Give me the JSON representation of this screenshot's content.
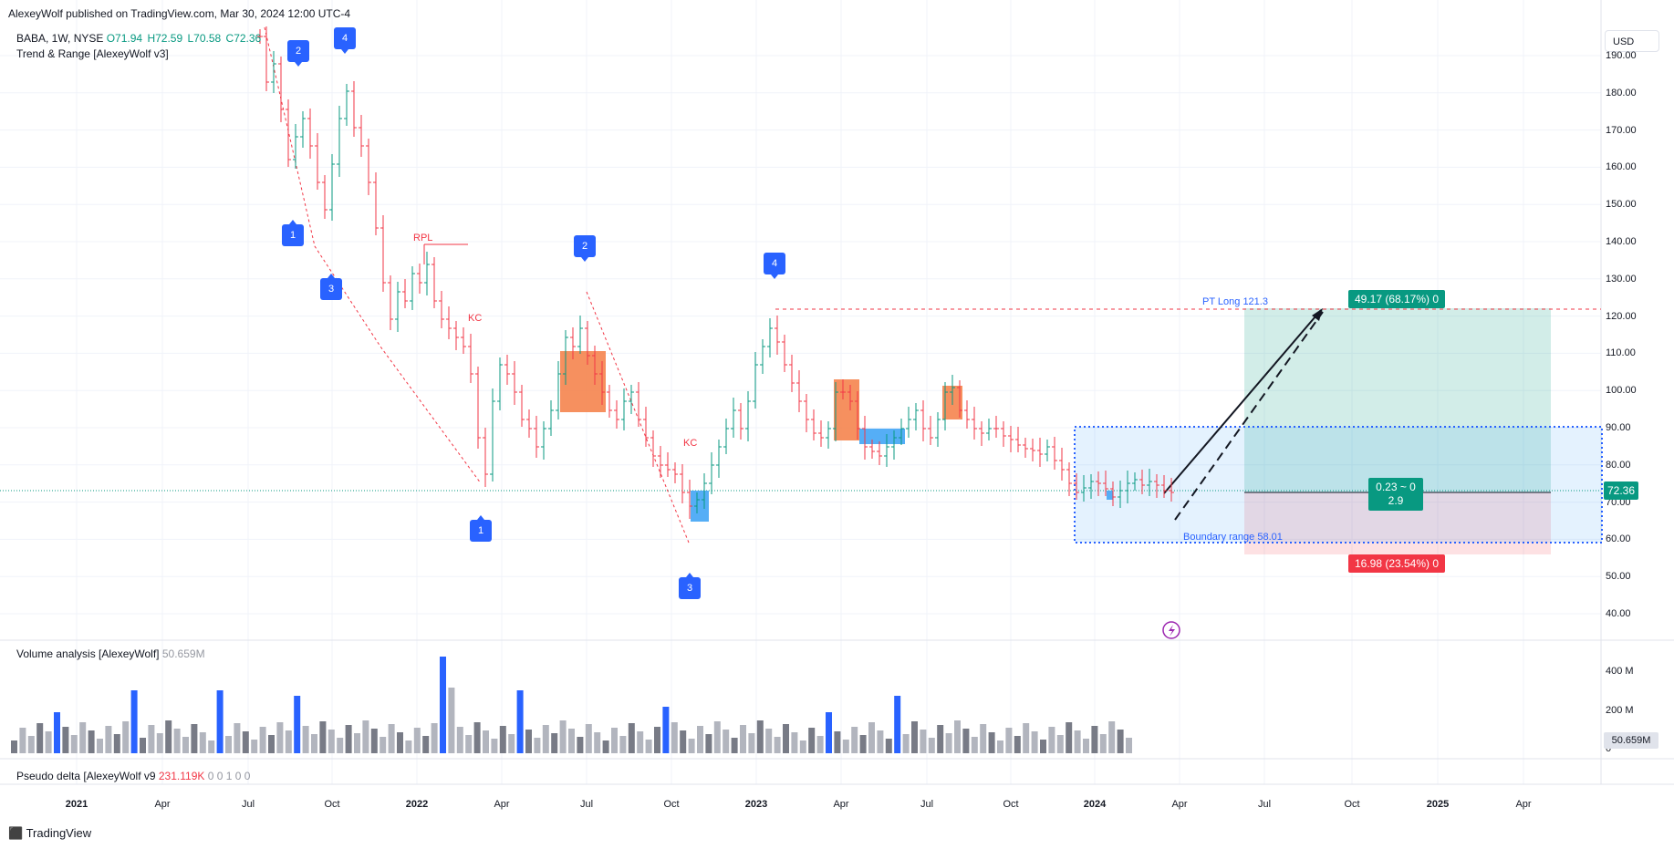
{
  "header": {
    "publish_line": "AlexeyWolf published on TradingView.com, Mar 30, 2024 12:00 UTC-4",
    "symbol_line": "BABA, 1W, NYSE",
    "ohlc": {
      "o": "O71.94",
      "h": "H72.59",
      "l": "L70.58",
      "c": "C72.36"
    },
    "indicator": "Trend & Range [AlexeyWolf v3]",
    "currency": "USD"
  },
  "price_axis": {
    "labels": [
      "190.00",
      "180.00",
      "170.00",
      "160.00",
      "150.00",
      "140.00",
      "130.00",
      "120.00",
      "110.00",
      "100.00",
      "90.00",
      "80.00",
      "70.00",
      "60.00",
      "50.00",
      "40.00"
    ],
    "last_price": "72.36"
  },
  "time_axis": {
    "labels": [
      "2021",
      "Apr",
      "Jul",
      "Oct",
      "2022",
      "Apr",
      "Jul",
      "Oct",
      "2023",
      "Apr",
      "Jul",
      "Oct",
      "2024",
      "Apr",
      "Jul",
      "Oct",
      "2025",
      "Apr"
    ]
  },
  "annotations": {
    "rpl": "RPL",
    "kc1": "KC",
    "kc2": "KC",
    "pt_long": "PT Long 121.3",
    "boundary": "Boundary range 58.01",
    "wave_markers": [
      "2",
      "4",
      "1",
      "3",
      "2",
      "4",
      "1",
      "3"
    ]
  },
  "position_tool": {
    "target": "49.17 (68.17%) 0",
    "stop": "16.98 (23.54%) 0",
    "rr_top": "0.23 ~ 0",
    "rr_bottom": "2.9"
  },
  "volume_pane": {
    "title": "Volume analysis [AlexeyWolf]",
    "value": "50.659M",
    "axis": [
      "400 M",
      "200 M",
      "0"
    ],
    "badge": "50.659M"
  },
  "delta_pane": {
    "title": "Pseudo delta [AlexeyWolf v9",
    "value": "231.119K",
    "rest": "0 0 1 0 0"
  },
  "footer": {
    "logo": "TradingView"
  },
  "colors": {
    "up": "#089981",
    "down": "#f23645",
    "accent": "#2962ff"
  }
}
